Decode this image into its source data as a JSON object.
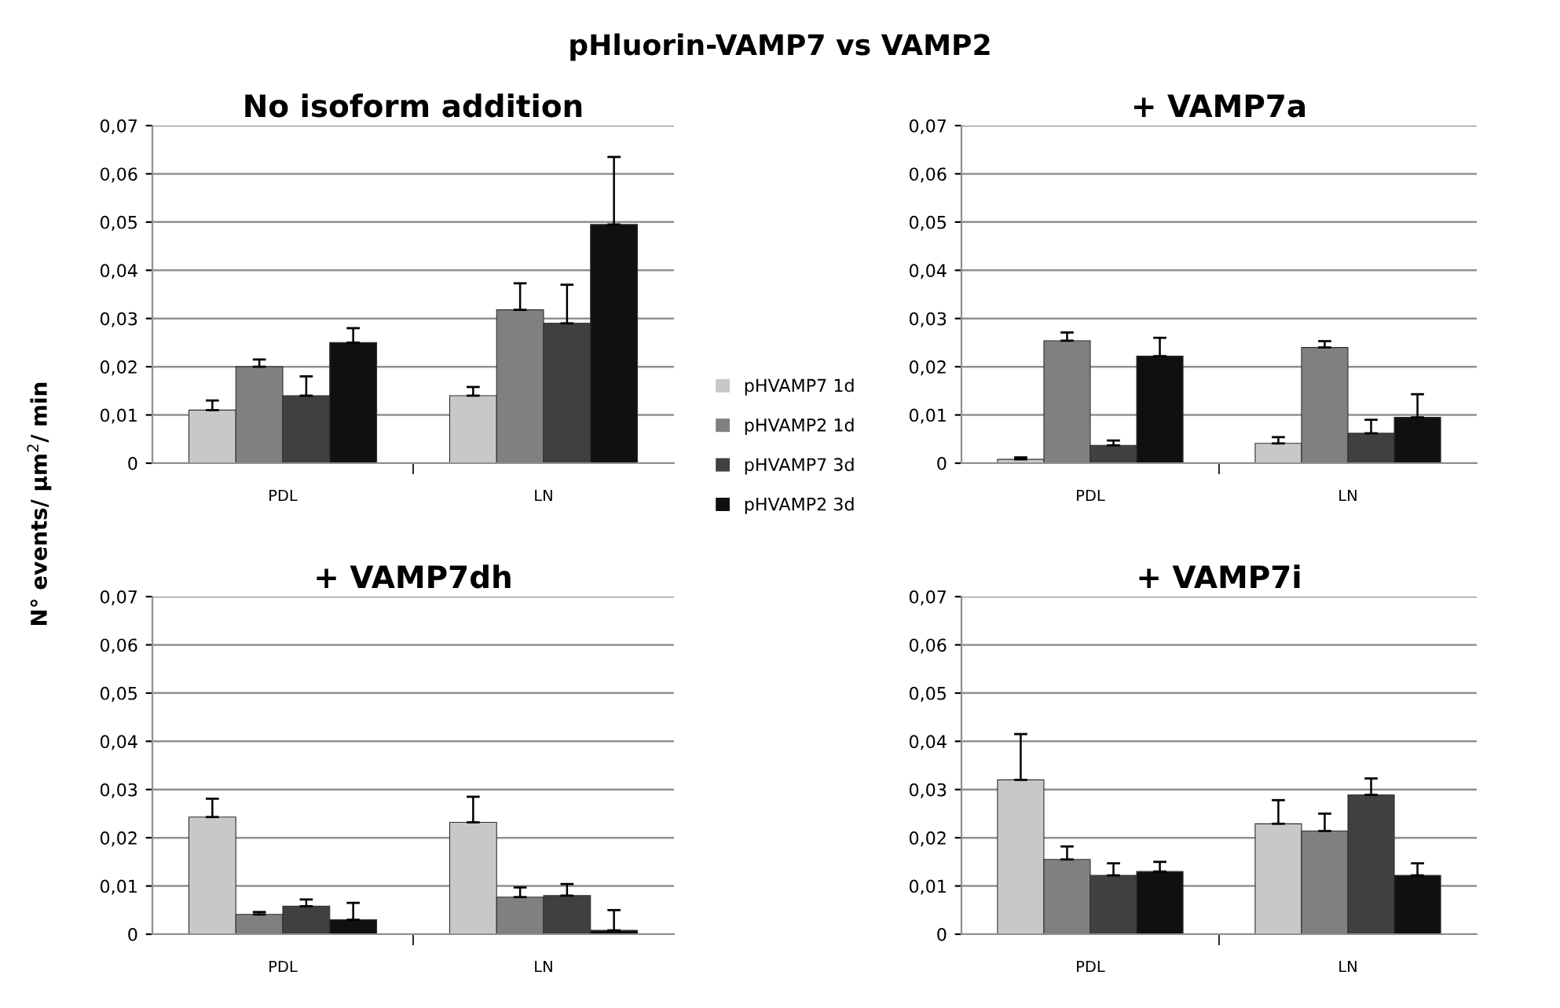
{
  "chart_data": [
    {
      "type": "bar",
      "title": "No isoform addition",
      "ylabel": "N° events/ µm$^{2}$/ min",
      "annotations": [
        "pHluorin-VAMP7 vs VAMP2"
      ],
      "categories": [
        "PDL",
        "LN"
      ],
      "legend": "right",
      "grid": "y",
      "ylim": [
        0,
        0.07
      ],
      "yticks": [
        {
          "value": 0,
          "label": "0"
        },
        {
          "value": 0.01,
          "label": "0,01"
        },
        {
          "value": 0.02,
          "label": "0,02"
        },
        {
          "value": 0.03,
          "label": "0,03"
        },
        {
          "value": 0.04,
          "label": "0,04"
        },
        {
          "value": 0.05,
          "label": "0,05"
        },
        {
          "value": 0.06,
          "label": "0,06"
        },
        {
          "value": 0.07,
          "label": "0,07"
        }
      ],
      "series": [
        {
          "name": "pHVAMP7 1d",
          "color": "#c8c8c8",
          "values": [
            0.011,
            0.014
          ],
          "errors": [
            [
              0.011,
              0.013
            ],
            [
              0.014,
              0.0158
            ]
          ]
        },
        {
          "name": "pHVAMP2 1d",
          "color": "#808080",
          "values": [
            0.02,
            0.0318
          ],
          "errors": [
            [
              0.02,
              0.0215
            ],
            [
              0.0318,
              0.0373
            ]
          ]
        },
        {
          "name": "pHVAMP7 3d",
          "color": "#404040",
          "values": [
            0.014,
            0.029
          ],
          "errors": [
            [
              0.014,
              0.018
            ],
            [
              0.029,
              0.037
            ]
          ]
        },
        {
          "name": "pHVAMP2 3d",
          "color": "#101010",
          "values": [
            0.025,
            0.0495
          ],
          "errors": [
            [
              0.025,
              0.028
            ],
            [
              0.0495,
              0.0635
            ]
          ]
        }
      ]
    },
    {
      "type": "bar",
      "title": "+ VAMP7a",
      "categories": [
        "PDL",
        "LN"
      ],
      "grid": "y",
      "ylim": [
        0,
        0.07
      ],
      "yticks": [
        {
          "value": 0,
          "label": "0"
        },
        {
          "value": 0.01,
          "label": "0,01"
        },
        {
          "value": 0.02,
          "label": "0,02"
        },
        {
          "value": 0.03,
          "label": "0,03"
        },
        {
          "value": 0.04,
          "label": "0,04"
        },
        {
          "value": 0.05,
          "label": "0,05"
        },
        {
          "value": 0.06,
          "label": "0,06"
        },
        {
          "value": 0.07,
          "label": "0,07"
        }
      ],
      "series": [
        {
          "color": "#c8c8c8",
          "values": [
            0.0008,
            0.0041
          ],
          "errors": [
            [
              0.0008,
              0.0012
            ],
            [
              0.0041,
              0.0054
            ]
          ]
        },
        {
          "color": "#808080",
          "values": [
            0.0254,
            0.024
          ],
          "errors": [
            [
              0.0254,
              0.0271
            ],
            [
              0.024,
              0.0253
            ]
          ]
        },
        {
          "color": "#404040",
          "values": [
            0.0037,
            0.0062
          ],
          "errors": [
            [
              0.0037,
              0.0047
            ],
            [
              0.0062,
              0.009
            ]
          ]
        },
        {
          "color": "#101010",
          "values": [
            0.0222,
            0.0095
          ],
          "errors": [
            [
              0.0222,
              0.026
            ],
            [
              0.0095,
              0.0143
            ]
          ]
        }
      ]
    },
    {
      "type": "bar",
      "title": "+ VAMP7dh",
      "categories": [
        "PDL",
        "LN"
      ],
      "grid": "y",
      "ylim": [
        0,
        0.07
      ],
      "yticks": [
        {
          "value": 0,
          "label": "0"
        },
        {
          "value": 0.01,
          "label": "0,01"
        },
        {
          "value": 0.02,
          "label": "0,02"
        },
        {
          "value": 0.03,
          "label": "0,03"
        },
        {
          "value": 0.04,
          "label": "0,04"
        },
        {
          "value": 0.05,
          "label": "0,05"
        },
        {
          "value": 0.06,
          "label": "0,06"
        },
        {
          "value": 0.07,
          "label": "0,07"
        }
      ],
      "series": [
        {
          "color": "#c8c8c8",
          "values": [
            0.0243,
            0.0232
          ],
          "errors": [
            [
              0.0243,
              0.0281
            ],
            [
              0.0232,
              0.0285
            ]
          ]
        },
        {
          "color": "#808080",
          "values": [
            0.0041,
            0.0077
          ],
          "errors": [
            [
              0.0041,
              0.0046
            ],
            [
              0.0077,
              0.0097
            ]
          ]
        },
        {
          "color": "#404040",
          "values": [
            0.0058,
            0.008
          ],
          "errors": [
            [
              0.0058,
              0.0072
            ],
            [
              0.008,
              0.0104
            ]
          ]
        },
        {
          "color": "#101010",
          "values": [
            0.003,
            0.0008
          ],
          "errors": [
            [
              0.003,
              0.0065
            ],
            [
              0.0008,
              0.005
            ]
          ]
        }
      ]
    },
    {
      "type": "bar",
      "title": "+ VAMP7i",
      "categories": [
        "PDL",
        "LN"
      ],
      "grid": "y",
      "ylim": [
        0,
        0.07
      ],
      "yticks": [
        {
          "value": 0,
          "label": "0"
        },
        {
          "value": 0.01,
          "label": "0,01"
        },
        {
          "value": 0.02,
          "label": "0,02"
        },
        {
          "value": 0.03,
          "label": "0,03"
        },
        {
          "value": 0.04,
          "label": "0,04"
        },
        {
          "value": 0.05,
          "label": "0,05"
        },
        {
          "value": 0.06,
          "label": "0,06"
        },
        {
          "value": 0.07,
          "label": "0,07"
        }
      ],
      "series": [
        {
          "color": "#c8c8c8",
          "values": [
            0.032,
            0.0229
          ],
          "errors": [
            [
              0.032,
              0.0415
            ],
            [
              0.0229,
              0.0278
            ]
          ]
        },
        {
          "color": "#808080",
          "values": [
            0.0155,
            0.0214
          ],
          "errors": [
            [
              0.0155,
              0.0182
            ],
            [
              0.0214,
              0.025
            ]
          ]
        },
        {
          "color": "#404040",
          "values": [
            0.0122,
            0.0289
          ],
          "errors": [
            [
              0.0122,
              0.0147
            ],
            [
              0.0289,
              0.0323
            ]
          ]
        },
        {
          "color": "#101010",
          "values": [
            0.013,
            0.0122
          ],
          "errors": [
            [
              0.013,
              0.015
            ],
            [
              0.0122,
              0.0147
            ]
          ]
        }
      ]
    }
  ]
}
